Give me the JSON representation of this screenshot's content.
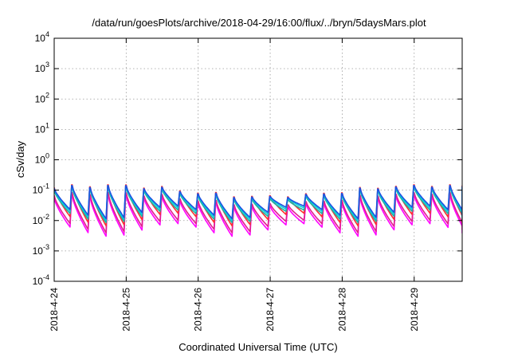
{
  "chart_data": {
    "type": "line",
    "title": "/data/run/goesPlots/archive/2018-04-29/16:00/flux/../bryn/5daysMars.plot",
    "xlabel": "Coordinated Universal Time (UTC)",
    "ylabel": "cSv/day",
    "yscale": "log",
    "ylim": [
      0.0001,
      10000
    ],
    "yticks": [
      {
        "value": 0.0001,
        "base": "10",
        "exp": "-4"
      },
      {
        "value": 0.001,
        "base": "10",
        "exp": "-3"
      },
      {
        "value": 0.01,
        "base": "10",
        "exp": "-2"
      },
      {
        "value": 0.1,
        "base": "10",
        "exp": "-1"
      },
      {
        "value": 1,
        "base": "10",
        "exp": "0"
      },
      {
        "value": 10,
        "base": "10",
        "exp": "1"
      },
      {
        "value": 100,
        "base": "10",
        "exp": "2"
      },
      {
        "value": 1000,
        "base": "10",
        "exp": "3"
      },
      {
        "value": 10000,
        "base": "10",
        "exp": "4"
      }
    ],
    "xlim": [
      "2018-04-24T00:00",
      "2018-04-29T16:00"
    ],
    "xticks": [
      {
        "value": "2018-04-24T00:00",
        "label": "2018-4-24"
      },
      {
        "value": "2018-04-25T00:00",
        "label": "2018-4-25"
      },
      {
        "value": "2018-04-26T00:00",
        "label": "2018-4-26"
      },
      {
        "value": "2018-04-27T00:00",
        "label": "2018-4-27"
      },
      {
        "value": "2018-04-28T00:00",
        "label": "2018-4-28"
      },
      {
        "value": "2018-04-29T00:00",
        "label": "2018-4-29"
      }
    ],
    "grid": true,
    "legend": "none",
    "pattern": {
      "cycle_hours": 6,
      "cycle_start": "2018-04-24T00:00",
      "peak_min": 0.06,
      "peak_max": 0.15,
      "trough_min": 0.003,
      "trough_max": 0.008
    },
    "series": [
      {
        "color": "#ff00ff",
        "peak_scale": 0.45,
        "trough_scale": 1.0
      },
      {
        "color": "#e0208c",
        "peak_scale": 0.55,
        "trough_scale": 1.3
      },
      {
        "color": "#ff3030",
        "peak_scale": 1.0,
        "trough_scale": 2.2
      },
      {
        "color": "#20b0a0",
        "peak_scale": 0.8,
        "trough_scale": 2.8
      },
      {
        "color": "#00d0e0",
        "peak_scale": 0.9,
        "trough_scale": 3.3
      },
      {
        "color": "#1e50e0",
        "peak_scale": 0.95,
        "trough_scale": 3.8
      }
    ]
  }
}
